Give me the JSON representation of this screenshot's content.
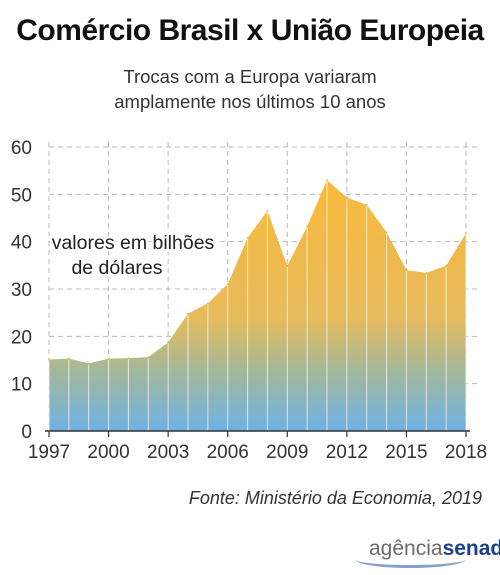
{
  "header": {
    "title": "Comércio Brasil x União Europeia",
    "subtitle_line1": "Trocas com a Europa variaram",
    "subtitle_line2": "amplamente nos últimos 10 anos"
  },
  "chart_data": {
    "type": "area",
    "x": [
      1997,
      1998,
      1999,
      2000,
      2001,
      2002,
      2003,
      2004,
      2005,
      2006,
      2007,
      2008,
      2009,
      2010,
      2011,
      2012,
      2013,
      2014,
      2015,
      2016,
      2017,
      2018
    ],
    "values": [
      15.1,
      15.3,
      14.3,
      15.3,
      15.4,
      15.6,
      18.7,
      24.8,
      27.0,
      31.0,
      40.8,
      46.5,
      34.9,
      43.2,
      53.0,
      49.3,
      47.8,
      42.0,
      34.0,
      33.4,
      34.9,
      41.8
    ],
    "x_ticks": [
      "1997",
      "2000",
      "2003",
      "2006",
      "2009",
      "2012",
      "2015",
      "2018"
    ],
    "y_ticks": [
      "60",
      "50",
      "40",
      "30",
      "20",
      "10",
      "0"
    ],
    "ylim": [
      0,
      60
    ],
    "annotation_line1": "valores em bilhões",
    "annotation_line2": "de dólares",
    "grid": true,
    "colors": {
      "top": "#f9b93a",
      "bottom": "#6fb2e4",
      "grid": "#b8b8b8",
      "axis": "#333333"
    }
  },
  "footer": {
    "source": "Fonte: Ministério da Economia, 2019",
    "logo_part1": "agência",
    "logo_part2": "senado"
  }
}
